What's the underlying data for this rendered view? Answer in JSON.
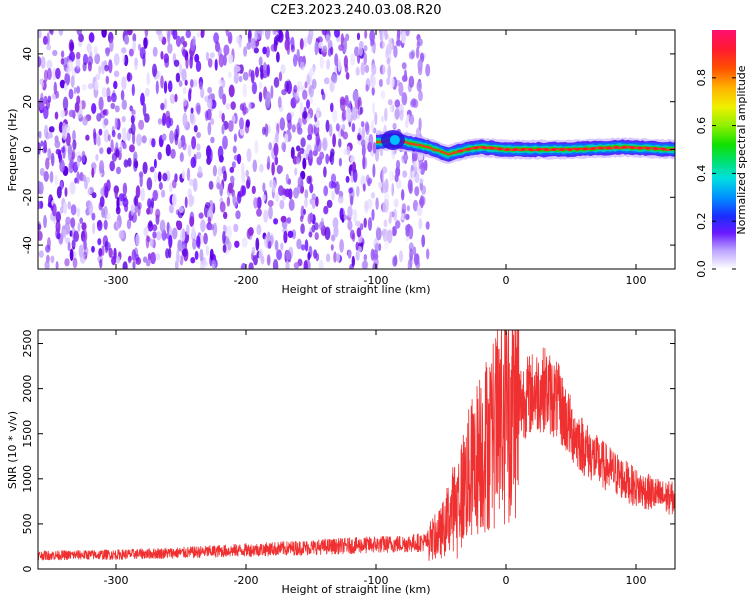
{
  "title": "C2E3.2023.240.03.08.R20",
  "colors": {
    "signal_line": "#f03030",
    "background": "#ffffff",
    "axes": "#000000",
    "noise_purple": "#7a2cf0",
    "colormap": [
      "#ffffff",
      "#d9c2ff",
      "#8a2be2",
      "#3a00ff",
      "#0050ff",
      "#00c8ff",
      "#00e0a0",
      "#00e000",
      "#c8f000",
      "#ffd000",
      "#ff7000",
      "#ff2020",
      "#ff0050"
    ]
  },
  "chart_data": [
    {
      "type": "heatmap",
      "xlabel": "Height of straight line (km)",
      "ylabel": "Frequency (Hz)",
      "xlim": [
        -360,
        130
      ],
      "ylim": [
        -50,
        50
      ],
      "x_ticks": [
        -300,
        -200,
        -100,
        0,
        100
      ],
      "y_ticks": [
        -40,
        -20,
        0,
        20,
        40
      ],
      "x_tick_labels": [
        "-300",
        "-200",
        "-100",
        "0",
        "100"
      ],
      "y_tick_labels": [
        "-40",
        "-20",
        "0",
        "20",
        "40"
      ],
      "colorbar": {
        "label": "Normalized spectral amplitude",
        "range": [
          0.0,
          1.0
        ],
        "ticks": [
          0.0,
          0.2,
          0.4,
          0.6,
          0.8
        ],
        "tick_labels": [
          "0.0",
          "0.2",
          "0.4",
          "0.6",
          "0.8"
        ]
      },
      "noise_region_x": [
        -360,
        -60
      ],
      "signal_band": {
        "x_start": -100,
        "x_end": 130,
        "center_frequency_hz": [
          {
            "x": -100,
            "f": 3
          },
          {
            "x": -85,
            "f": 4
          },
          {
            "x": -60,
            "f": 1
          },
          {
            "x": -45,
            "f": -2
          },
          {
            "x": -30,
            "f": 0
          },
          {
            "x": -20,
            "f": 1
          },
          {
            "x": 0,
            "f": 0
          },
          {
            "x": 50,
            "f": 0
          },
          {
            "x": 90,
            "f": 1
          },
          {
            "x": 130,
            "f": 0
          }
        ],
        "half_width_hz": 2
      }
    },
    {
      "type": "line",
      "xlabel": "Height of straight line (km)",
      "ylabel": "SNR (10 * v/v)",
      "xlim": [
        -360,
        130
      ],
      "ylim": [
        0,
        2650
      ],
      "x_ticks": [
        -300,
        -200,
        -100,
        0,
        100
      ],
      "y_ticks": [
        0,
        500,
        1000,
        1500,
        2000,
        2500
      ],
      "x_tick_labels": [
        "-300",
        "-200",
        "-100",
        "0",
        "100"
      ],
      "y_tick_labels": [
        "0",
        "500",
        "1000",
        "1500",
        "2000",
        "2500"
      ],
      "series": [
        {
          "envelope": [
            {
              "x": -360,
              "y": 150
            },
            {
              "x": -300,
              "y": 160
            },
            {
              "x": -250,
              "y": 180
            },
            {
              "x": -200,
              "y": 210
            },
            {
              "x": -150,
              "y": 240
            },
            {
              "x": -100,
              "y": 270
            },
            {
              "x": -80,
              "y": 280
            },
            {
              "x": -60,
              "y": 300
            },
            {
              "x": -50,
              "y": 400
            },
            {
              "x": -40,
              "y": 700
            },
            {
              "x": -30,
              "y": 1000
            },
            {
              "x": -20,
              "y": 1300
            },
            {
              "x": -10,
              "y": 1500
            },
            {
              "x": 0,
              "y": 1700
            },
            {
              "x": 10,
              "y": 1850
            },
            {
              "x": 20,
              "y": 1950
            },
            {
              "x": 30,
              "y": 2000
            },
            {
              "x": 40,
              "y": 1850
            },
            {
              "x": 50,
              "y": 1550
            },
            {
              "x": 60,
              "y": 1350
            },
            {
              "x": 70,
              "y": 1200
            },
            {
              "x": 80,
              "y": 1100
            },
            {
              "x": 90,
              "y": 1000
            },
            {
              "x": 100,
              "y": 900
            },
            {
              "x": 110,
              "y": 850
            },
            {
              "x": 120,
              "y": 800
            },
            {
              "x": 130,
              "y": 780
            }
          ],
          "peak": {
            "x": 0,
            "y": 2640
          }
        }
      ]
    }
  ]
}
